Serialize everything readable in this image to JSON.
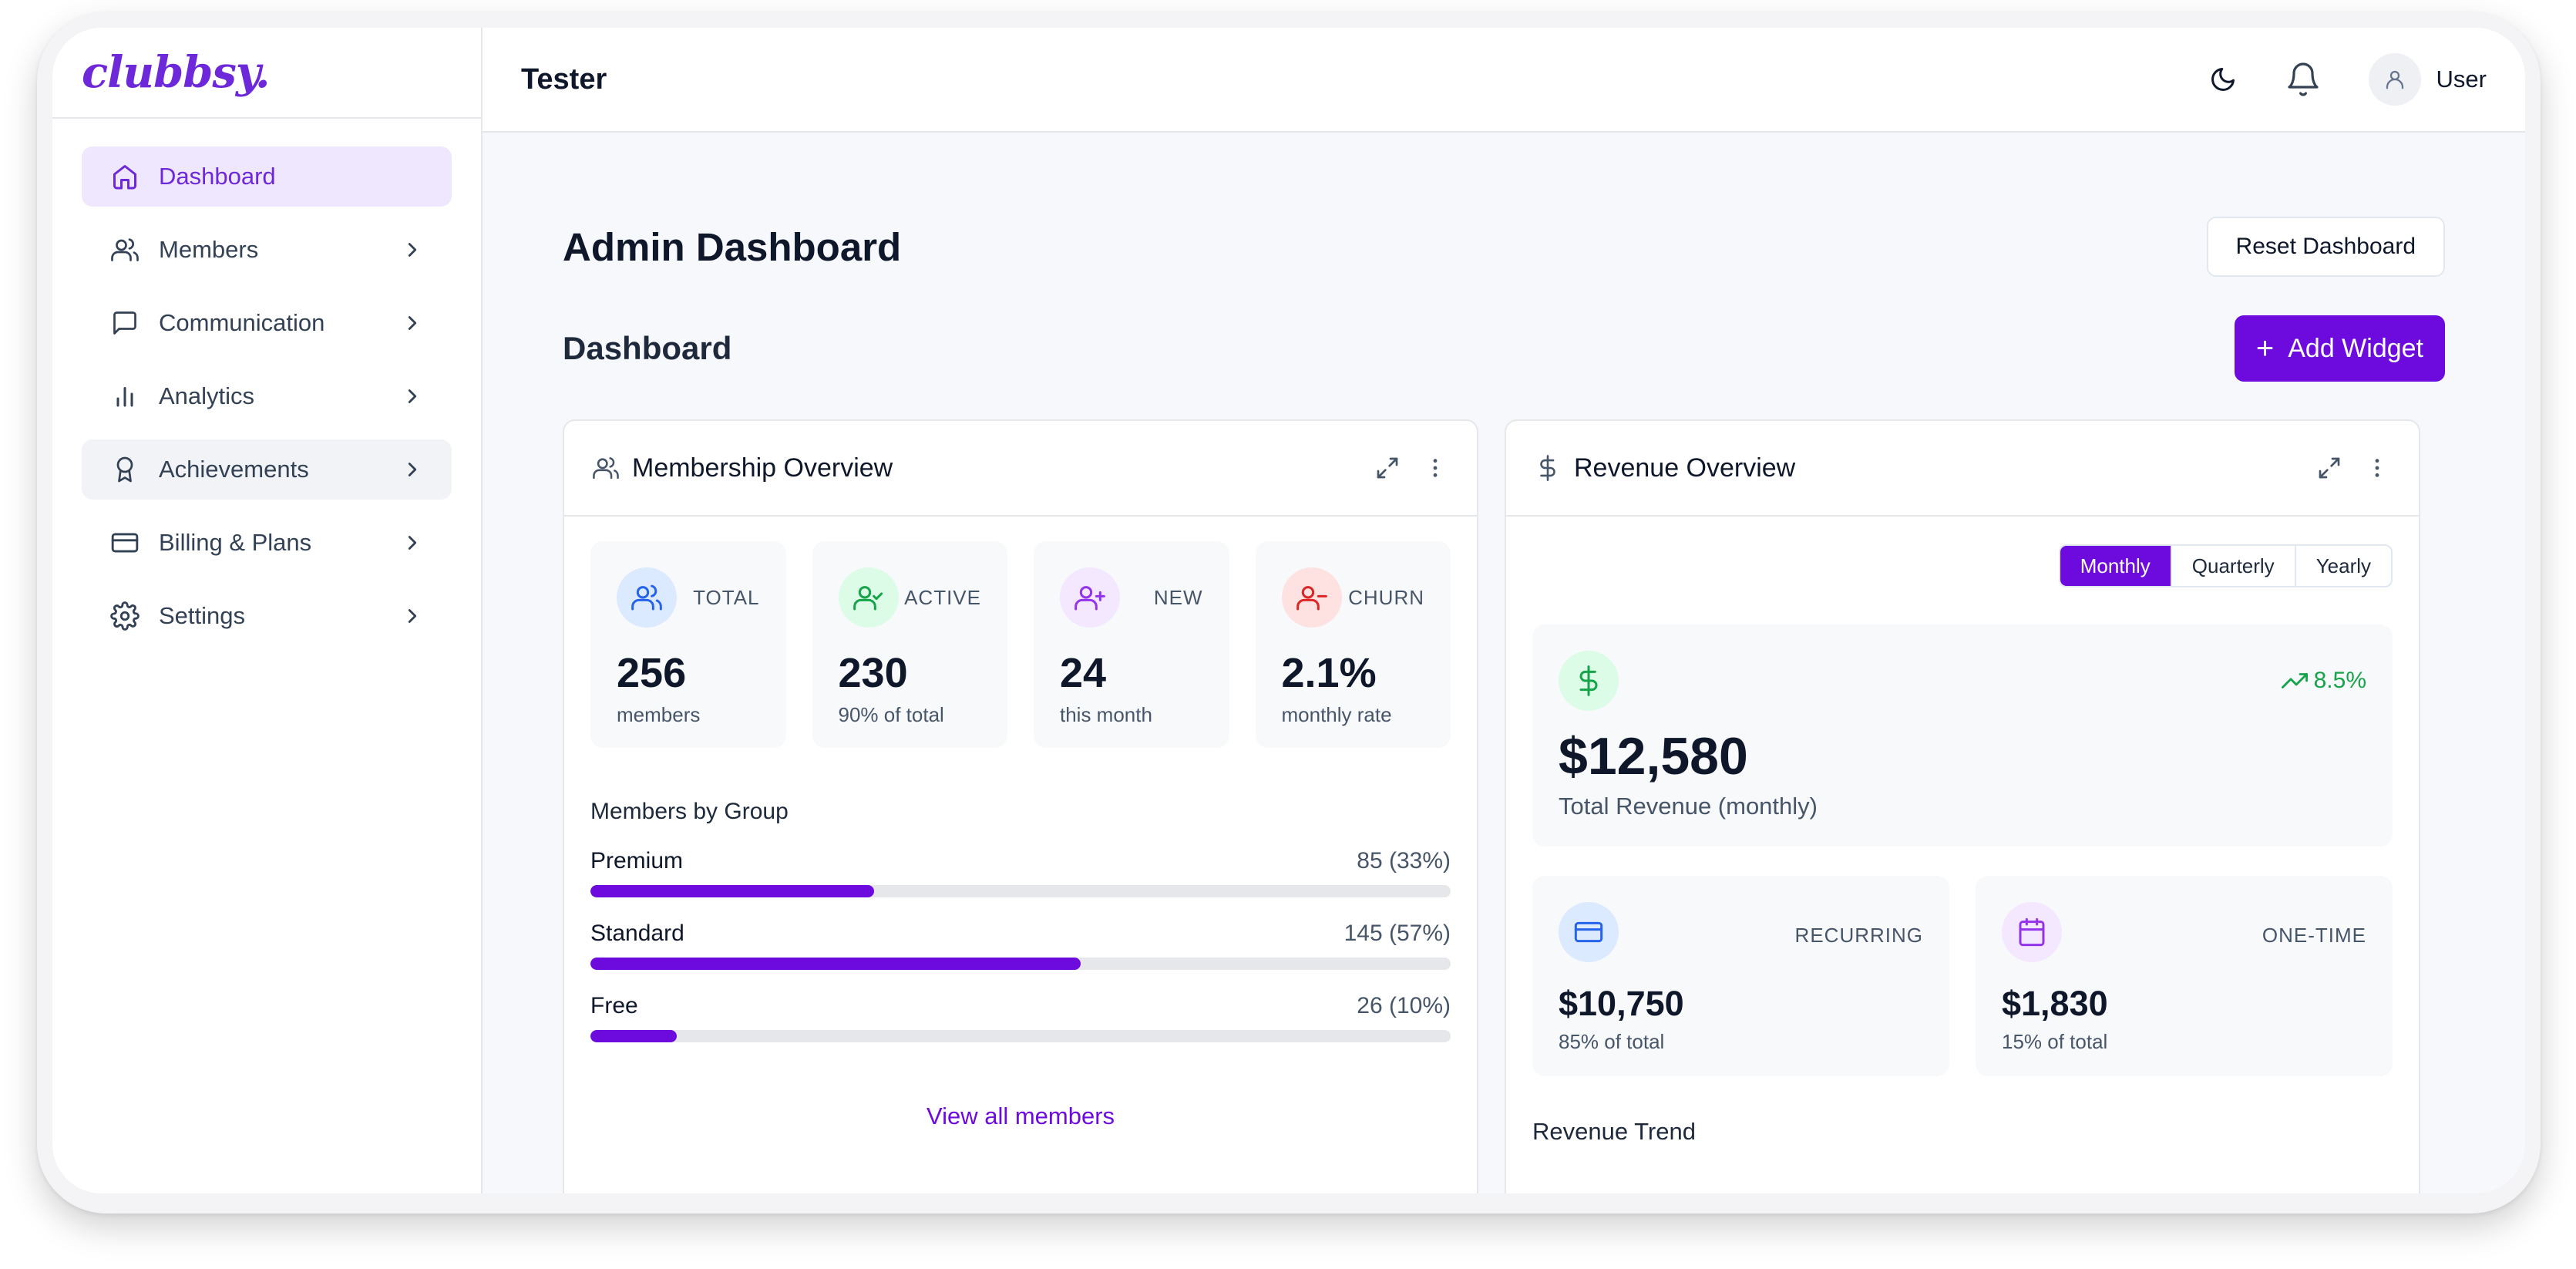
{
  "app": {
    "logo": "clubbsy."
  },
  "sidebar": {
    "items": [
      {
        "label": "Dashboard",
        "icon": "home-icon"
      },
      {
        "label": "Members",
        "icon": "users-icon"
      },
      {
        "label": "Communication",
        "icon": "message-square-icon"
      },
      {
        "label": "Analytics",
        "icon": "bar-chart-icon"
      },
      {
        "label": "Achievements",
        "icon": "award-icon"
      },
      {
        "label": "Billing & Plans",
        "icon": "credit-card-icon"
      },
      {
        "label": "Settings",
        "icon": "gear-icon"
      }
    ]
  },
  "header": {
    "title": "Tester",
    "user_name": "User"
  },
  "main": {
    "page_title": "Admin Dashboard",
    "reset_label": "Reset Dashboard",
    "section_title": "Dashboard",
    "add_widget_label": "Add Widget"
  },
  "membership": {
    "title": "Membership Overview",
    "stats": [
      {
        "label": "TOTAL",
        "value": "256",
        "sub": "members"
      },
      {
        "label": "ACTIVE",
        "value": "230",
        "sub": "90% of total"
      },
      {
        "label": "NEW",
        "value": "24",
        "sub": "this month"
      },
      {
        "label": "CHURN",
        "value": "2.1%",
        "sub": "monthly rate"
      }
    ],
    "groups_title": "Members by Group",
    "groups": [
      {
        "name": "Premium",
        "value": "85 (33%)",
        "fraction": 0.33
      },
      {
        "name": "Standard",
        "value": "145 (57%)",
        "fraction": 0.57
      },
      {
        "name": "Free",
        "value": "26 (10%)",
        "fraction": 0.1
      }
    ],
    "view_all": "View all members"
  },
  "revenue": {
    "title": "Revenue Overview",
    "periods": [
      "Monthly",
      "Quarterly",
      "Yearly"
    ],
    "selected_period": "Monthly",
    "total": "$12,580",
    "total_label": "Total Revenue (monthly)",
    "trend": "8.5%",
    "recurring": {
      "label": "RECURRING",
      "value": "$10,750",
      "sub": "85% of total"
    },
    "one_time": {
      "label": "ONE-TIME",
      "value": "$1,830",
      "sub": "15% of total"
    },
    "trend_title": "Revenue Trend"
  },
  "colors": {
    "accent": "#6d0bdf",
    "success": "#16a34a"
  }
}
